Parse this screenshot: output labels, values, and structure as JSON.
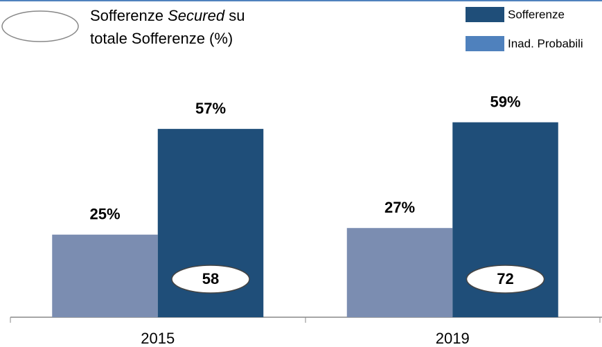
{
  "chart_data": {
    "type": "bar",
    "note_parts": [
      "Sofferenze ",
      "Secured",
      " su",
      "totale Sofferenze (%)"
    ],
    "categories": [
      "2015",
      "2019"
    ],
    "series": [
      {
        "name": "Inad. Probabili",
        "color": "#7b8db1",
        "legend_color": "#4f81bd",
        "values": [
          25,
          27
        ],
        "value_labels": [
          "25%",
          "27%"
        ]
      },
      {
        "name": "Sofferenze",
        "color": "#1f4e79",
        "values": [
          57,
          59
        ],
        "value_labels": [
          "57%",
          "59%"
        ],
        "secured": [
          58,
          72
        ]
      }
    ]
  }
}
